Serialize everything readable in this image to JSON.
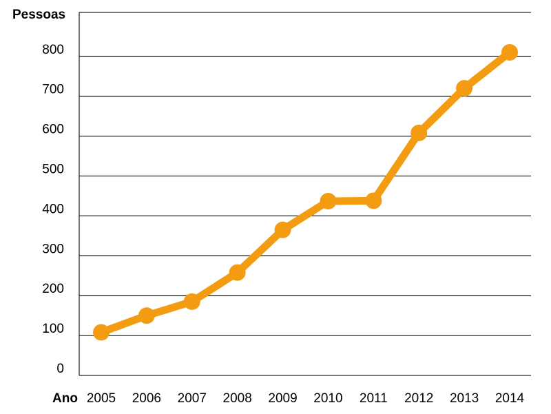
{
  "chart_data": {
    "type": "line",
    "ylabel": "Pessoas",
    "xlabel": "Ano",
    "x": [
      "2005",
      "2006",
      "2007",
      "2008",
      "2009",
      "2010",
      "2011",
      "2012",
      "2013",
      "2014"
    ],
    "series": [
      {
        "values": [
          108,
          150,
          185,
          258,
          365,
          437,
          438,
          608,
          720,
          810
        ]
      }
    ],
    "yticks": [
      0,
      100,
      200,
      300,
      400,
      500,
      600,
      700,
      800
    ],
    "ylim": [
      0,
      900
    ],
    "grid": true,
    "legend": "none",
    "line_color": "#F39C12"
  }
}
